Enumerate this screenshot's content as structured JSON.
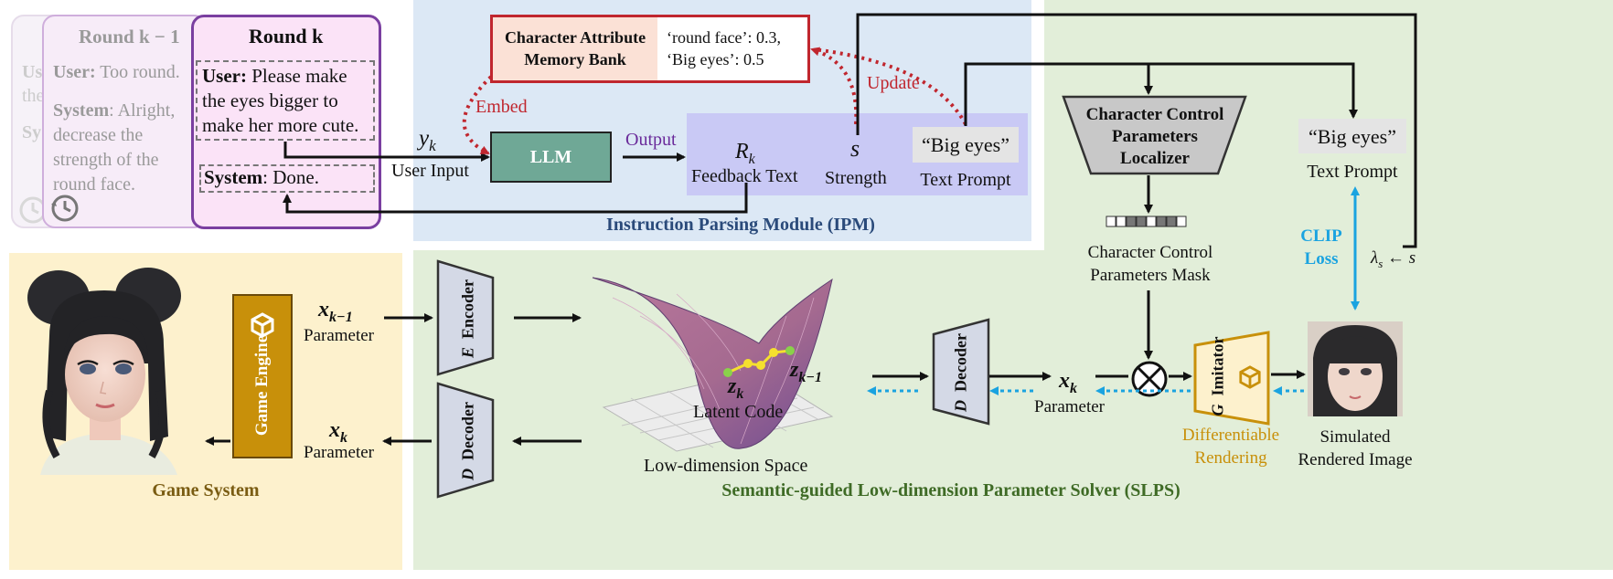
{
  "dialog": {
    "back_card_title": "Round k − 1",
    "back_card_fragments": [
      "Us",
      "the",
      "Sy"
    ],
    "mid_user_label": "User:",
    "mid_user_text": "Too round.",
    "mid_system_label": "System",
    "mid_system_lines": [
      ": Alright,",
      "decrease the",
      "strength of the",
      "round face."
    ],
    "front_title": "Round k",
    "front_user_label": "User:",
    "front_user_lines": [
      "Please make",
      "the eyes bigger to",
      "make her more cute."
    ],
    "front_system_label": "System",
    "front_system_text": ": Done."
  },
  "ipm": {
    "title": "Instruction Parsing Module (IPM)",
    "memory_bank_label": [
      "Character Attribute",
      "Memory Bank"
    ],
    "memory_bank_values": [
      "‘round face’: 0.3,",
      "‘Big eyes’: 0.5"
    ],
    "embed_label": "Embed",
    "update_label": "Update",
    "user_input_symbol": "y",
    "user_input_sub": "k",
    "user_input_label": "User Input",
    "llm_label": "LLM",
    "output_label": "Output",
    "feedback_symbol": "R",
    "feedback_sub": "k",
    "feedback_label": "Feedback Text",
    "strength_symbol": "s",
    "strength_label": "Strength",
    "prompt_value": "“Big eyes”",
    "prompt_label": "Text Prompt"
  },
  "right_top": {
    "localizer_label": [
      "Character Control",
      "Parameters",
      "Localizer"
    ],
    "mask_label": [
      "Character Control",
      "Parameters  Mask"
    ],
    "prompt_value": "“Big eyes”",
    "prompt_label": "Text Prompt",
    "clip_label": [
      "CLIP",
      "Loss"
    ],
    "lambda_label": "λ",
    "lambda_sub": "s",
    "lambda_rest": " ← s"
  },
  "game": {
    "title": "Game System",
    "engine_label": "Game Engine",
    "x_prev_symbol": "x",
    "x_prev_sub": "k−1",
    "x_prev_label": "Parameter",
    "x_k_symbol": "x",
    "x_k_sub": "k",
    "x_k_label": "Parameter"
  },
  "slps": {
    "title": "Semantic-guided Low-dimension Parameter Solver (SLPS)",
    "encoder_letter": "E",
    "encoder_label": "Encoder",
    "decoder_letter": "D",
    "decoder_label": "Decoder",
    "decoder2_letter": "D",
    "decoder2_label": "Decoder",
    "latent_zk_symbol": "z",
    "latent_zk_sub": "k",
    "latent_zk1_symbol": "z",
    "latent_zk1_sub": "k−1",
    "latent_label": "Latent Code",
    "space_label": "Low-dimension Space",
    "param_symbol": "x",
    "param_sub": "k",
    "param_label": "Parameter",
    "imitator_letter": "G",
    "imitator_label": "Imitator",
    "diff_label": [
      "Differentiable",
      "Rendering"
    ],
    "sim_label": [
      "Simulated",
      "Rendered Image"
    ]
  },
  "colors": {
    "ipm_bg": "#dce8f5",
    "slps_bg": "#e2eed9",
    "game_bg": "#fdf1cd",
    "feedback_bg": "#c9c9f5",
    "llm_fill": "#6fa896",
    "memory_border": "#c0262e",
    "red_dotted": "#c0262e",
    "clip_blue": "#1aa3e0",
    "engine_gold": "#c8900a",
    "ipm_title": "#2a4a7a",
    "slps_title": "#3f6b26",
    "game_title": "#7a5c12",
    "output_purple": "#6a2a9a",
    "diff_gold": "#c8900a"
  }
}
